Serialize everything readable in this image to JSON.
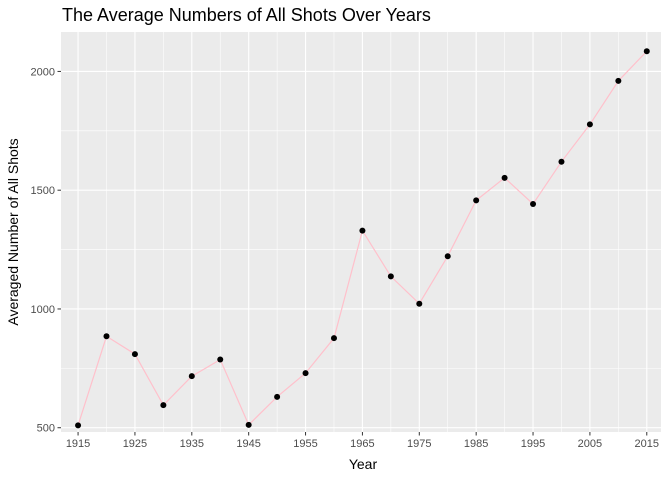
{
  "chart_data": {
    "type": "line",
    "title": "The Average Numbers of All Shots Over Years",
    "xlabel": "Year",
    "ylabel": "Averaged Number of All Shots",
    "xlim": [
      1912,
      2017.5
    ],
    "ylim": [
      482,
      2166
    ],
    "x_ticks": [
      1915,
      1925,
      1935,
      1945,
      1955,
      1965,
      1975,
      1985,
      1995,
      2005,
      2015
    ],
    "y_ticks": [
      500,
      1000,
      1500,
      2000
    ],
    "grid": true,
    "line_color": "#FFC0CB",
    "point_color": "#000000",
    "panel_background": "#EBEBEB",
    "x": [
      1915,
      1920,
      1925,
      1930,
      1935,
      1940,
      1945,
      1950,
      1955,
      1960,
      1965,
      1970,
      1975,
      1980,
      1985,
      1990,
      1995,
      2000,
      2005,
      2010,
      2015
    ],
    "y": [
      510,
      885,
      810,
      595,
      717,
      787,
      512,
      630,
      730,
      877,
      1330,
      1137,
      1022,
      1222,
      1457,
      1552,
      1442,
      1620,
      1777,
      1960,
      2085
    ]
  }
}
